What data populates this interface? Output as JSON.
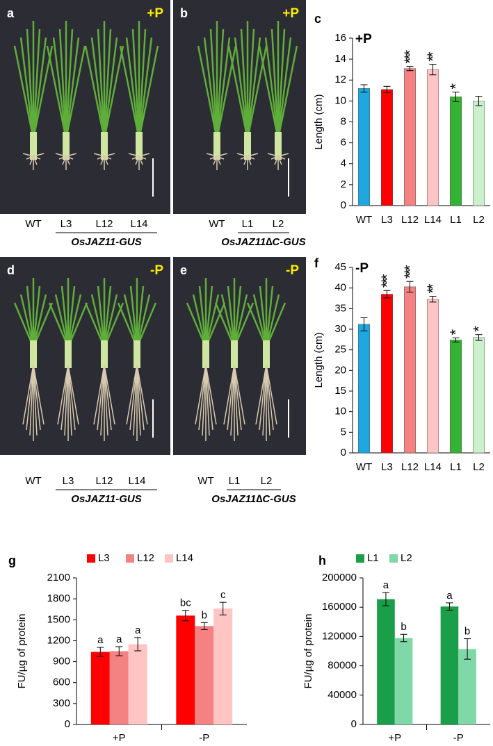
{
  "photo_panels": [
    {
      "letter": "a",
      "condition": "+P",
      "labels": [
        "WT",
        "L3",
        "L12",
        "L14"
      ],
      "group": "OsJAZ11-GUS"
    },
    {
      "letter": "b",
      "condition": "+P",
      "labels": [
        "WT",
        "L1",
        "L2"
      ],
      "group": "OsJAZ11∆C-GUS"
    },
    {
      "letter": "d",
      "condition": "-P",
      "labels": [
        "WT",
        "L3",
        "L12",
        "L14"
      ],
      "group": "OsJAZ11-GUS"
    },
    {
      "letter": "e",
      "condition": "-P",
      "labels": [
        "WT",
        "L1",
        "L2"
      ],
      "group": "OsJAZ11∆C-GUS"
    }
  ],
  "chart_data": [
    {
      "type": "bar",
      "letter": "c",
      "annotation": "+P",
      "ylabel": "Length (cm)",
      "categories": [
        "WT",
        "L3",
        "L12",
        "L14",
        "L1",
        "L2"
      ],
      "values": [
        11.2,
        11.1,
        13.1,
        13.0,
        10.4,
        10.0
      ],
      "errors": [
        0.35,
        0.3,
        0.2,
        0.5,
        0.45,
        0.45
      ],
      "value_labels": [
        null,
        null,
        "***",
        "**",
        "*",
        null
      ],
      "colors": [
        "#1ea7e1",
        "#ff0000",
        "#f58282",
        "#ffc4c4",
        "#33b233",
        "#ccefcc"
      ],
      "ylim": [
        0,
        16
      ],
      "yticks": [
        0,
        2,
        4,
        6,
        8,
        10,
        12,
        14,
        16
      ]
    },
    {
      "type": "bar",
      "letter": "f",
      "annotation": "-P",
      "ylabel": "Length (cm)",
      "categories": [
        "WT",
        "L3",
        "L12",
        "L14",
        "L1",
        "L2"
      ],
      "values": [
        31.2,
        38.5,
        40.3,
        37.3,
        27.4,
        28.0
      ],
      "errors": [
        1.6,
        0.9,
        1.3,
        0.7,
        0.5,
        0.7
      ],
      "value_labels": [
        null,
        "***",
        "***",
        "**",
        "*",
        "*"
      ],
      "colors": [
        "#1ea7e1",
        "#ff0000",
        "#f58282",
        "#ffc4c4",
        "#33b233",
        "#ccefcc"
      ],
      "ylim": [
        0,
        45
      ],
      "yticks": [
        0,
        5,
        10,
        15,
        20,
        25,
        30,
        35,
        40,
        45
      ]
    },
    {
      "type": "grouped_bar",
      "letter": "g",
      "ylabel": "FU/µg of protein",
      "categories": [
        "+P",
        "-P"
      ],
      "series": [
        {
          "name": "L3",
          "color": "#ff0000",
          "values": [
            1040,
            1560
          ],
          "errors": [
            65,
            75
          ],
          "value_labels": [
            "a",
            "bc"
          ]
        },
        {
          "name": "L12",
          "color": "#f58282",
          "values": [
            1050,
            1410
          ],
          "errors": [
            65,
            50
          ],
          "value_labels": [
            "a",
            "b"
          ]
        },
        {
          "name": "L14",
          "color": "#ffc4c4",
          "values": [
            1150,
            1660
          ],
          "errors": [
            95,
            90
          ],
          "value_labels": [
            "a",
            "c"
          ]
        }
      ],
      "ylim": [
        0,
        2100
      ],
      "yticks": [
        0,
        300,
        600,
        900,
        1200,
        1500,
        1800,
        2100
      ]
    },
    {
      "type": "grouped_bar",
      "letter": "h",
      "ylabel": "FU/µg of protein",
      "categories": [
        "+P",
        "-P"
      ],
      "series": [
        {
          "name": "L1",
          "color": "#1a9e4a",
          "values": [
            171000,
            161000
          ],
          "errors": [
            9000,
            5000
          ],
          "value_labels": [
            "a",
            "a"
          ]
        },
        {
          "name": "L2",
          "color": "#80d8a8",
          "values": [
            118000,
            103000
          ],
          "errors": [
            5000,
            14000
          ],
          "value_labels": [
            "b",
            "b"
          ]
        }
      ],
      "ylim": [
        0,
        200000
      ],
      "yticks": [
        0,
        40000,
        80000,
        120000,
        160000,
        200000
      ]
    }
  ]
}
